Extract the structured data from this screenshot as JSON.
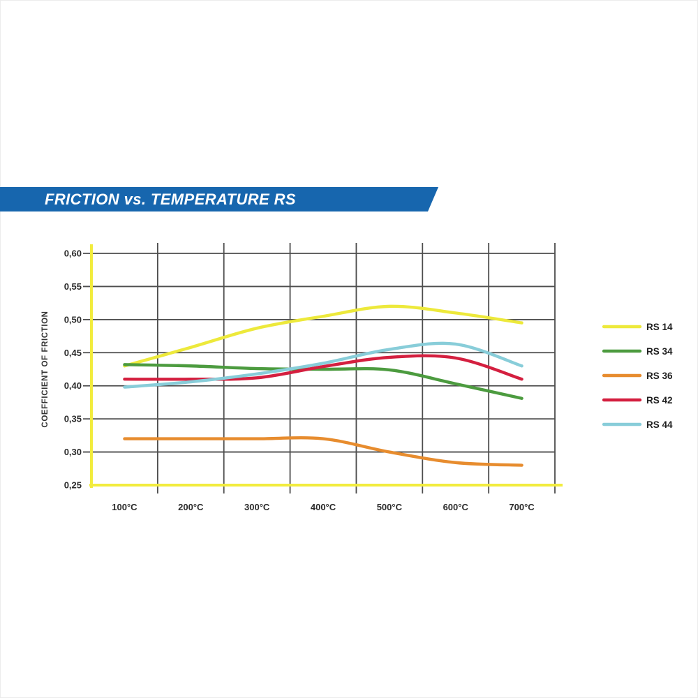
{
  "banner": {
    "title": "FRICTION vs. TEMPERATURE RS",
    "background": "#1766AE",
    "text_color": "#FFFFFF"
  },
  "chart_data": {
    "type": "line",
    "title": "FRICTION vs. TEMPERATURE RS",
    "xlabel": "",
    "ylabel": "COEFFICIENT OF FRICTION",
    "categories": [
      "100°C",
      "200°C",
      "300°C",
      "400°C",
      "500°C",
      "600°C",
      "700°C"
    ],
    "series": [
      {
        "name": "RS 14",
        "color": "#EDE93B",
        "values": [
          0.43,
          0.458,
          0.487,
          0.505,
          0.52,
          0.51,
          0.495
        ]
      },
      {
        "name": "RS 34",
        "color": "#4C9B3F",
        "values": [
          0.432,
          0.43,
          0.426,
          0.425,
          0.424,
          0.403,
          0.381
        ]
      },
      {
        "name": "RS 36",
        "color": "#E78C2E",
        "values": [
          0.32,
          0.32,
          0.32,
          0.32,
          0.3,
          0.284,
          0.28
        ]
      },
      {
        "name": "RS 42",
        "color": "#D41F3F",
        "values": [
          0.41,
          0.41,
          0.412,
          0.429,
          0.443,
          0.442,
          0.41
        ]
      },
      {
        "name": "RS 44",
        "color": "#88CDD9",
        "values": [
          0.398,
          0.406,
          0.418,
          0.434,
          0.455,
          0.463,
          0.43
        ]
      }
    ],
    "ylim": [
      0.25,
      0.6
    ],
    "y_ticks": [
      "0,60",
      "0,55",
      "0,50",
      "0,45",
      "0,40",
      "0,35",
      "0,30",
      "0,25"
    ],
    "y_tick_values": [
      0.6,
      0.55,
      0.5,
      0.45,
      0.4,
      0.35,
      0.3,
      0.25
    ],
    "grid": true,
    "legend_position": "right",
    "axis_color": "#F2EC3D",
    "grid_color": "#4D4D4D",
    "tick_label_color": "#2B2B2B"
  }
}
